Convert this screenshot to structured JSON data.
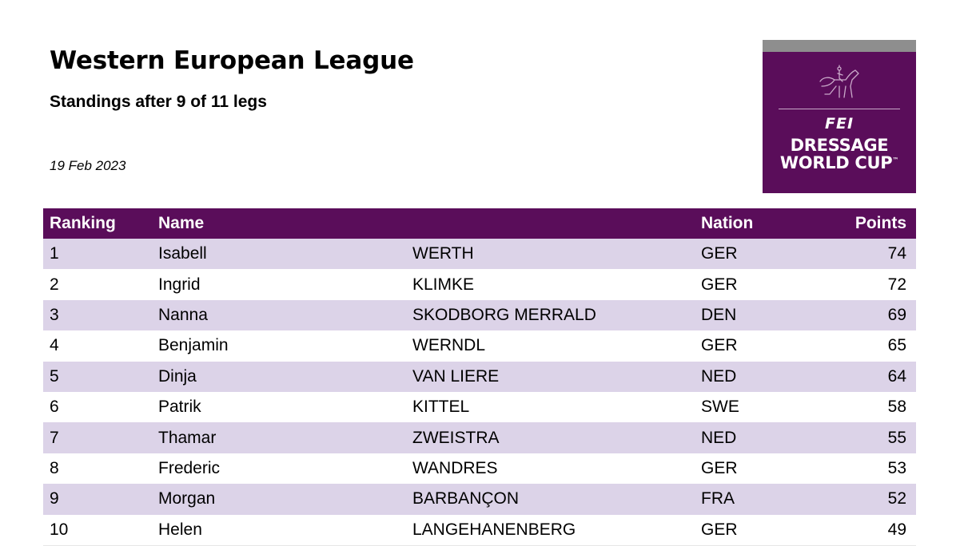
{
  "header": {
    "title": "Western European League",
    "subtitle": "Standings after 9 of 11 legs",
    "date": "19 Feb 2023"
  },
  "logo": {
    "brand": "FEI",
    "line1": "DRESSAGE",
    "line2": "WORLD CUP",
    "trademark": "™",
    "icon": "dressage-rider-icon",
    "colors": {
      "background": "#5a0d5a",
      "band": "#8e8e8e"
    }
  },
  "table": {
    "columns": [
      "Ranking",
      "Name",
      "Nation",
      "Points"
    ],
    "colors": {
      "header": "#5a0d5a",
      "stripe": "#dcd3e8"
    },
    "rows": [
      {
        "rank": "1",
        "first": "Isabell",
        "last": "WERTH",
        "nation": "GER",
        "points": "74"
      },
      {
        "rank": "2",
        "first": "Ingrid",
        "last": "KLIMKE",
        "nation": "GER",
        "points": "72"
      },
      {
        "rank": "3",
        "first": "Nanna",
        "last": "SKODBORG MERRALD",
        "nation": "DEN",
        "points": "69"
      },
      {
        "rank": "4",
        "first": "Benjamin",
        "last": "WERNDL",
        "nation": "GER",
        "points": "65"
      },
      {
        "rank": "5",
        "first": "Dinja",
        "last": "VAN LIERE",
        "nation": "NED",
        "points": "64"
      },
      {
        "rank": "6",
        "first": "Patrik",
        "last": "KITTEL",
        "nation": "SWE",
        "points": "58"
      },
      {
        "rank": "7",
        "first": "Thamar",
        "last": "ZWEISTRA",
        "nation": "NED",
        "points": "55"
      },
      {
        "rank": "8",
        "first": "Frederic",
        "last": "WANDRES",
        "nation": "GER",
        "points": "53"
      },
      {
        "rank": "9",
        "first": "Morgan",
        "last": "BARBANÇON",
        "nation": "FRA",
        "points": "52"
      },
      {
        "rank": "10",
        "first": "Helen",
        "last": "LANGEHANENBERG",
        "nation": "GER",
        "points": "49"
      }
    ]
  }
}
